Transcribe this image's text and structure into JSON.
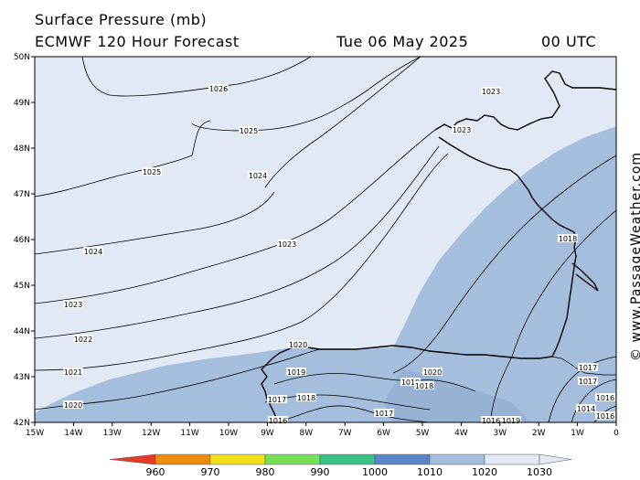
{
  "header": {
    "title": "Surface Pressure (mb)",
    "model": "ECMWF 120 Hour Forecast",
    "date": "Tue 06 May 2025",
    "time": "00 UTC"
  },
  "credit": "© www.PassageWeather.com",
  "axes": {
    "lat_labels": [
      "50N",
      "49N",
      "48N",
      "47N",
      "46N",
      "45N",
      "44N",
      "43N",
      "42N"
    ],
    "lon_labels": [
      "15W",
      "14W",
      "13W",
      "12W",
      "11W",
      "10W",
      "9W",
      "8W",
      "7W",
      "6W",
      "5W",
      "4W",
      "3W",
      "2W",
      "1W",
      "0"
    ]
  },
  "isobars": {
    "labels": [
      "1026",
      "1025",
      "1025",
      "1024",
      "1024",
      "1023",
      "1023",
      "1022",
      "1021",
      "1020",
      "1023",
      "1023",
      "1018",
      "1020",
      "1019",
      "1017",
      "1016",
      "1018",
      "1019",
      "1020",
      "1018",
      "1017",
      "1016",
      "1019",
      "1017",
      "1017",
      "1014",
      "1016",
      "1016"
    ]
  },
  "legend": {
    "levels": [
      "960",
      "970",
      "980",
      "990",
      "1000",
      "1010",
      "1020",
      "1030"
    ],
    "colors": [
      "#e43b2b",
      "#f08a0c",
      "#f2df18",
      "#78e058",
      "#3cc08a",
      "#5a86c8",
      "#a6bedd",
      "#e2e8f4"
    ]
  },
  "colors": {
    "ocean_light": "#e2e8f4",
    "ocean_mid": "#a6bedd",
    "ocean_deep": "#7ea0cc",
    "land": "#a6bedd",
    "coast": "#000000",
    "isobar": "#000000"
  }
}
